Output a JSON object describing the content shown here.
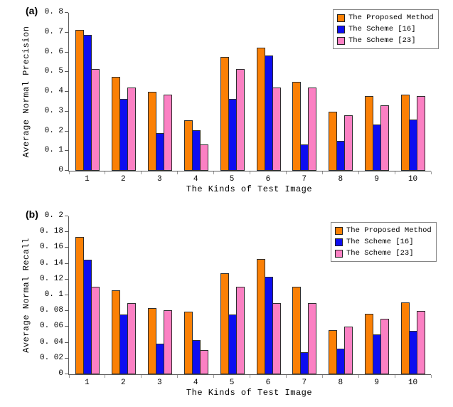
{
  "chart_data": [
    {
      "type": "bar",
      "panel_label": "(a)",
      "ylabel": "Average Normal Precision",
      "xlabel": "The Kinds of Test Image",
      "ylim": [
        0,
        0.8
      ],
      "ytick_labels": [
        "0",
        "0. 1",
        "0. 2",
        "0. 3",
        "0. 4",
        "0. 5",
        "0. 6",
        "0. 7",
        "0. 8"
      ],
      "grid": false,
      "legend_position": "top-right",
      "categories": [
        "1",
        "2",
        "3",
        "4",
        "5",
        "6",
        "7",
        "8",
        "9",
        "10"
      ],
      "series": [
        {
          "name": "The Proposed Method",
          "color": "#FB8005",
          "values": [
            0.715,
            0.475,
            0.4,
            0.255,
            0.575,
            0.625,
            0.45,
            0.3,
            0.38,
            0.385
          ]
        },
        {
          "name": "The Scheme [16]",
          "color": "#0D0DF0",
          "values": [
            0.69,
            0.365,
            0.19,
            0.205,
            0.365,
            0.585,
            0.135,
            0.15,
            0.235,
            0.26
          ]
        },
        {
          "name": "The Scheme [23]",
          "color": "#FB80C3",
          "values": [
            0.515,
            0.42,
            0.385,
            0.135,
            0.515,
            0.42,
            0.42,
            0.28,
            0.33,
            0.38
          ]
        }
      ]
    },
    {
      "type": "bar",
      "panel_label": "(b)",
      "ylabel": "Average Normal Recall",
      "xlabel": "The Kinds of Test Image",
      "ylim": [
        0,
        0.2
      ],
      "ytick_labels": [
        "0",
        "0. 02",
        "0. 04",
        "0. 06",
        "0. 08",
        "0. 1",
        "0. 12",
        "0. 14",
        "0. 16",
        "0. 18",
        "0. 2"
      ],
      "grid": false,
      "legend_position": "top-right",
      "categories": [
        "1",
        "2",
        "3",
        "4",
        "5",
        "6",
        "7",
        "8",
        "9",
        "10"
      ],
      "series": [
        {
          "name": "The Proposed Method",
          "color": "#FB8005",
          "values": [
            0.174,
            0.106,
            0.084,
            0.079,
            0.128,
            0.146,
            0.111,
            0.056,
            0.077,
            0.091
          ]
        },
        {
          "name": "The Scheme [16]",
          "color": "#0D0DF0",
          "values": [
            0.145,
            0.076,
            0.039,
            0.043,
            0.076,
            0.123,
            0.028,
            0.032,
            0.05,
            0.055
          ]
        },
        {
          "name": "The Scheme [23]",
          "color": "#FB80C3",
          "values": [
            0.111,
            0.09,
            0.081,
            0.031,
            0.111,
            0.09,
            0.09,
            0.06,
            0.07,
            0.08
          ]
        }
      ]
    }
  ]
}
